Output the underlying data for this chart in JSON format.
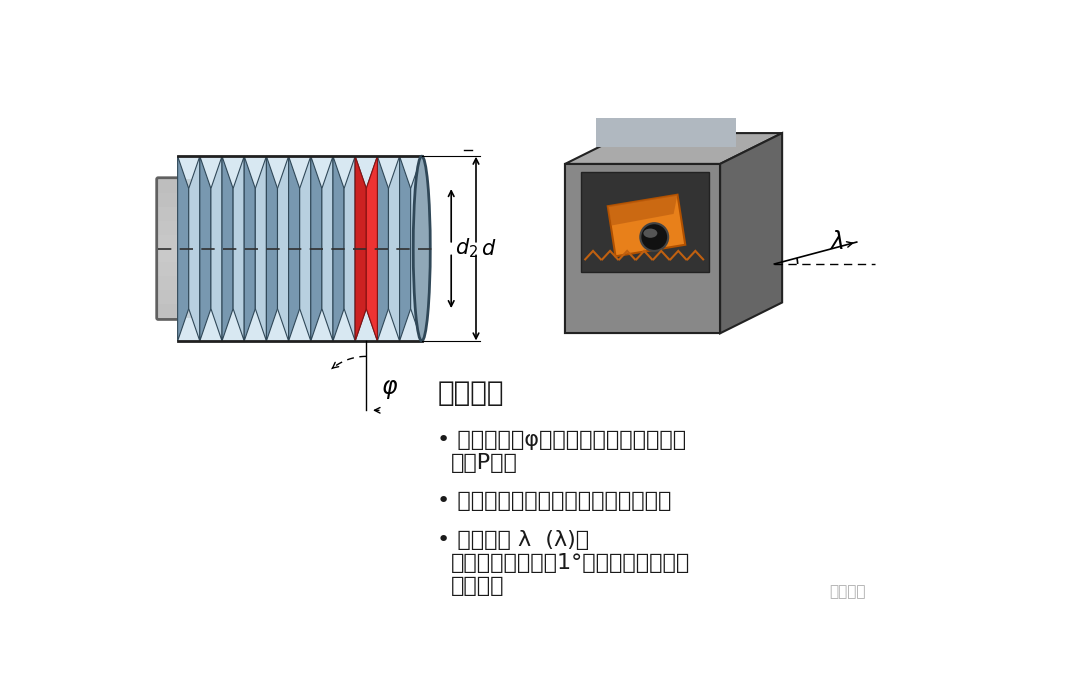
{
  "background_color": "#ffffff",
  "title_text": "螺旋升角",
  "bullet1_line1": "螺旋升角（φ）取决于螺纹的直径和螺",
  "bullet1_line2": "距（P）。",
  "bullet2": "通过更换刀垫调整刀片的牙侧后角。",
  "bullet3_line1": "刃倾角为 λ  (λ)。",
  "bullet3_line2": "最常见的刃倾角为1°，对应刀柄中的标",
  "bullet3_line3": "准刀垫。",
  "watermark": "美日分享",
  "text_color": "#1a1a1a",
  "font_size_title": 20,
  "font_size_body": 16,
  "label_d2": "$d_2$",
  "label_d": "$d$",
  "label_phi": "$\\varphi$",
  "label_lambda": "$\\lambda$"
}
